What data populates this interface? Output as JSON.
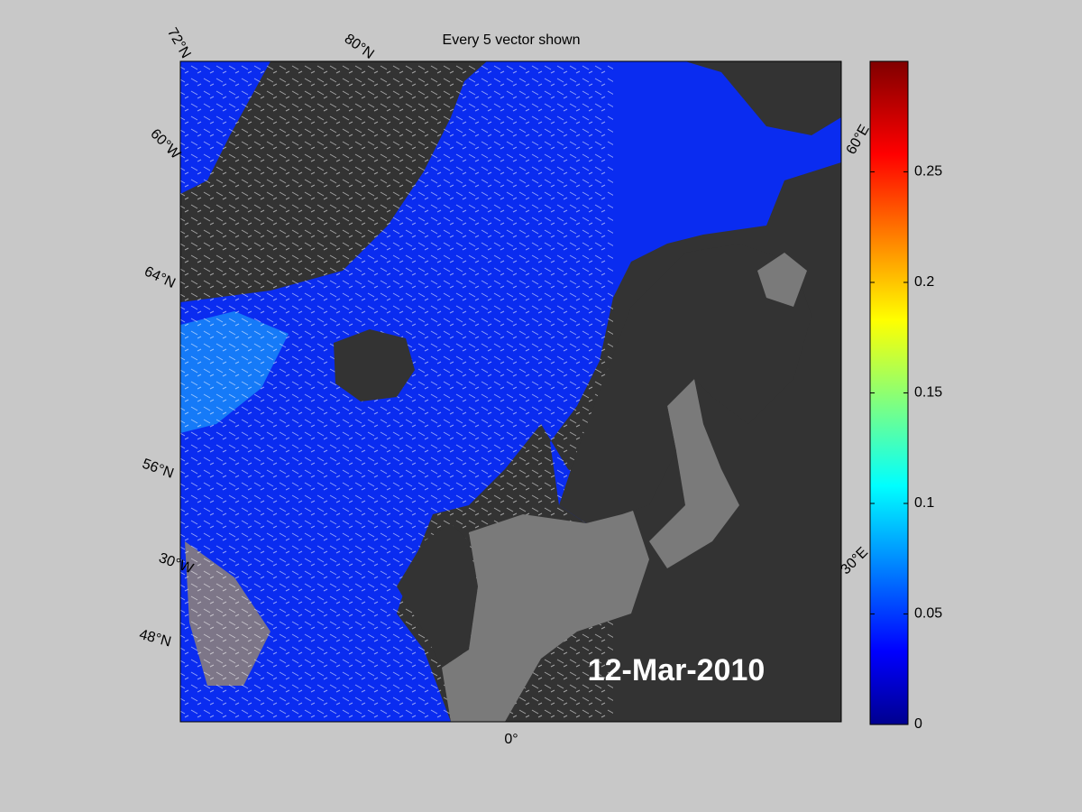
{
  "map": {
    "title": "Every 5 vector shown",
    "date": "12-Mar-2010",
    "graticule_labels": [
      "72°N",
      "80°N",
      "60°W",
      "64°N",
      "56°N",
      "30°W",
      "48°N",
      "0°",
      "60°E",
      "30°E"
    ]
  },
  "colorbar": {
    "lim": [
      0,
      0.3
    ],
    "ticks": [
      0,
      0.05,
      0.1,
      0.15,
      0.2,
      0.25
    ]
  }
}
